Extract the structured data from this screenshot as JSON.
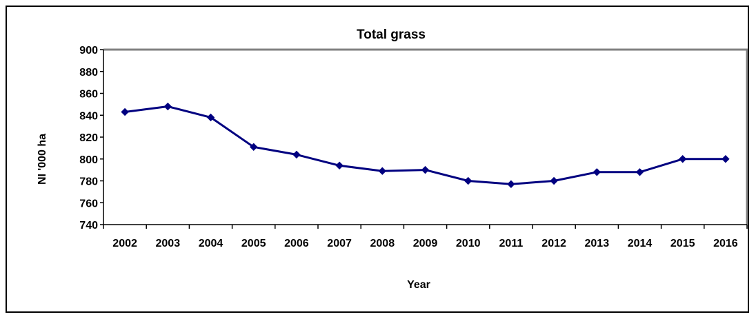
{
  "chart_data": {
    "type": "line",
    "title": "Total grass",
    "xlabel": "Year",
    "ylabel": "NI '000 ha",
    "ylim": [
      740,
      900
    ],
    "ystep": 20,
    "grid": false,
    "legend": "none",
    "categories": [
      "2002",
      "2003",
      "2004",
      "2005",
      "2006",
      "2007",
      "2008",
      "2009",
      "2010",
      "2011",
      "2012",
      "2013",
      "2014",
      "2015",
      "2016"
    ],
    "series": [
      {
        "values": [
          843,
          848,
          838,
          811,
          804,
          794,
          789,
          790,
          780,
          777,
          780,
          788,
          788,
          800,
          800
        ],
        "color": "#000080"
      }
    ],
    "colors": {
      "plot_border": "#808080",
      "axis": "#000000",
      "line": "#000080"
    }
  }
}
